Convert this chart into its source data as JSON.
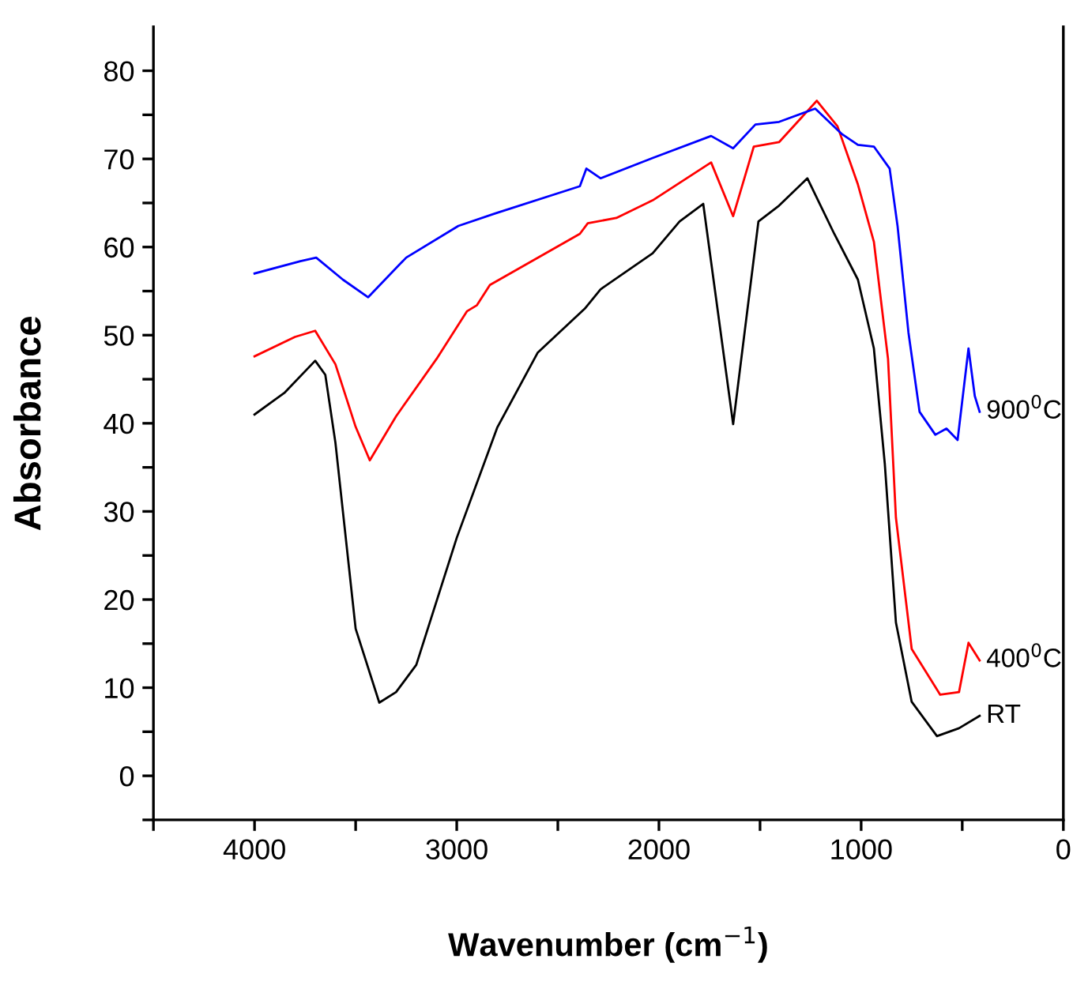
{
  "chart_data": {
    "type": "line",
    "xlabel": "Wavenumber (cm$^{−1}$)",
    "ylabel": "Absorbance",
    "xlim": [
      4500,
      0
    ],
    "ylim": [
      -5,
      85
    ],
    "xticks": [
      {
        "value": 4500,
        "label": null
      },
      4000,
      {
        "value": 3500,
        "label": null
      },
      3000,
      {
        "value": 2500,
        "label": null
      },
      2000,
      {
        "value": 1500,
        "label": null
      },
      1000,
      {
        "value": 500,
        "label": null
      },
      0
    ],
    "yticks": [
      {
        "value": -5,
        "label": null
      },
      0,
      {
        "value": 5,
        "label": null
      },
      10,
      {
        "value": 15,
        "label": null
      },
      20,
      {
        "value": 25,
        "label": null
      },
      30,
      {
        "value": 35,
        "label": null
      },
      40,
      {
        "value": 45,
        "label": null
      },
      50,
      {
        "value": 55,
        "label": null
      },
      60,
      {
        "value": 65,
        "label": null
      },
      70,
      {
        "value": 75,
        "label": null
      },
      80
    ],
    "grid": false,
    "legend": false,
    "marker": "none",
    "line_style": "solid",
    "series": [
      {
        "name": "RT",
        "color": "#000000",
        "x": [
          4000,
          3850,
          3700,
          3650,
          3600,
          3500,
          3383,
          3300,
          3200,
          3000,
          2800,
          2600,
          2367,
          2289,
          2031,
          1898,
          1781,
          1633,
          1508,
          1406,
          1266,
          1133,
          1016,
          937,
          883,
          828,
          750,
          625,
          516,
          414
        ],
        "values": [
          41,
          43.5,
          47.1,
          45.5,
          37.8,
          16.7,
          8.3,
          9.5,
          12.6,
          27,
          39.5,
          48,
          53,
          55.2,
          59.3,
          62.9,
          64.9,
          39.9,
          62.9,
          64.7,
          67.8,
          61.5,
          56.3,
          48.5,
          35.4,
          17.4,
          8.4,
          4.5,
          5.4,
          6.8
        ]
      },
      {
        "name": "400$^{0}$C",
        "color": "#ff0000",
        "x": [
          4000,
          3800,
          3700,
          3600,
          3500,
          3430,
          3300,
          3100,
          2950,
          2900,
          2836,
          2391,
          2352,
          2211,
          2031,
          1742,
          1633,
          1531,
          1406,
          1219,
          1117,
          1016,
          937,
          867,
          828,
          750,
          609,
          516,
          469,
          414
        ],
        "values": [
          47.6,
          49.8,
          50.5,
          46.7,
          39.6,
          35.8,
          40.8,
          47.3,
          52.7,
          53.4,
          55.7,
          61.5,
          62.7,
          63.3,
          65.3,
          69.6,
          63.5,
          71.4,
          71.9,
          76.6,
          73.7,
          67.1,
          60.6,
          47.3,
          29.3,
          14.4,
          9.2,
          9.5,
          15.1,
          13.1
        ]
      },
      {
        "name": "900$^{0}$C",
        "color": "#0000ff",
        "x": [
          4000,
          3773,
          3695,
          3563,
          3438,
          3250,
          2992,
          2812,
          2391,
          2359,
          2289,
          2031,
          1742,
          1633,
          1523,
          1406,
          1227,
          1094,
          1016,
          937,
          859,
          820,
          766,
          711,
          633,
          578,
          523,
          469,
          438,
          414
        ],
        "values": [
          57,
          58.4,
          58.8,
          56.3,
          54.3,
          58.8,
          62.4,
          63.8,
          66.9,
          68.9,
          67.8,
          70.1,
          72.6,
          71.2,
          73.9,
          74.2,
          75.7,
          72.8,
          71.6,
          71.4,
          68.9,
          62.4,
          50.3,
          41.3,
          38.7,
          39.4,
          38.1,
          48.5,
          43.1,
          41.3
        ]
      }
    ]
  }
}
